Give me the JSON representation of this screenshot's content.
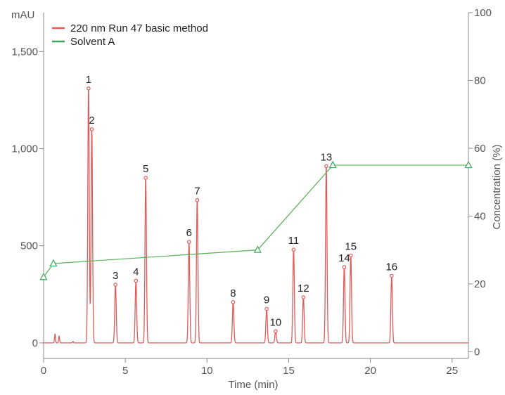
{
  "chart_data": {
    "type": "line",
    "y_unit": "mAU",
    "xlabel": "Time (min)",
    "y2label": "Concentration (%)",
    "xlim": [
      0,
      26
    ],
    "ylim": [
      -80,
      1700
    ],
    "y2lim": [
      -2,
      100
    ],
    "x_ticks": [
      "0",
      "5",
      "10",
      "15",
      "20",
      "25"
    ],
    "y_ticks": [
      "0",
      "500",
      "1,000",
      "1,500"
    ],
    "y2_ticks": [
      "0",
      "20",
      "40",
      "60",
      "80",
      "100"
    ],
    "x_tick_values": [
      0,
      5,
      10,
      15,
      20,
      25
    ],
    "y_tick_values": [
      0,
      500,
      1000,
      1500
    ],
    "y2_tick_values": [
      0,
      20,
      40,
      60,
      80,
      100
    ],
    "legend": [
      "220 nm Run 47 basic method",
      "Solvent A"
    ],
    "legend_position": "top-left",
    "colors": {
      "chromatogram": "#e05a5a",
      "solvent": "#55b055",
      "axis": "#888888"
    },
    "series": [
      {
        "name": "220 nm Run 47 basic method",
        "axis": "left",
        "baseline": 0,
        "peaks": [
          {
            "label": "1",
            "t": 2.75,
            "height": 1310
          },
          {
            "label": "2",
            "t": 2.95,
            "height": 1100
          },
          {
            "label": "3",
            "t": 4.4,
            "height": 300
          },
          {
            "label": "4",
            "t": 5.65,
            "height": 320
          },
          {
            "label": "5",
            "t": 6.25,
            "height": 850
          },
          {
            "label": "6",
            "t": 8.9,
            "height": 520
          },
          {
            "label": "7",
            "t": 9.4,
            "height": 735
          },
          {
            "label": "8",
            "t": 11.6,
            "height": 210
          },
          {
            "label": "9",
            "t": 13.65,
            "height": 175
          },
          {
            "label": "10",
            "t": 14.2,
            "height": 60
          },
          {
            "label": "11",
            "t": 15.3,
            "height": 480
          },
          {
            "label": "12",
            "t": 15.9,
            "height": 235
          },
          {
            "label": "13",
            "t": 17.3,
            "height": 910
          },
          {
            "label": "14",
            "t": 18.4,
            "height": 390
          },
          {
            "label": "15",
            "t": 18.8,
            "height": 450
          },
          {
            "label": "16",
            "t": 21.3,
            "height": 345
          }
        ],
        "minor_peaks": [
          {
            "t": 0.7,
            "height": 45
          },
          {
            "t": 0.95,
            "height": 35
          },
          {
            "t": 1.8,
            "height": 8
          }
        ]
      },
      {
        "name": "Solvent A",
        "axis": "right",
        "x": [
          0,
          0.6,
          13.1,
          17.7,
          26
        ],
        "y": [
          22,
          26,
          30,
          55,
          55
        ]
      }
    ]
  }
}
